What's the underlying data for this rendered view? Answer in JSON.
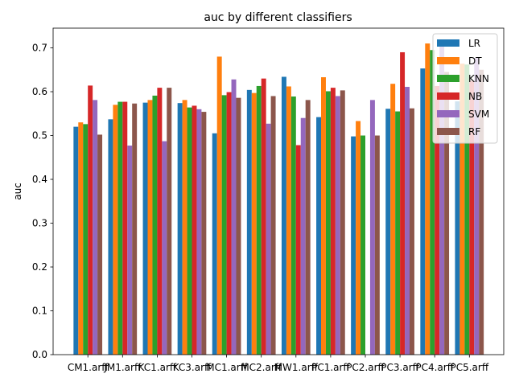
{
  "chart_data": {
    "type": "bar",
    "title": "auc by different classifiers",
    "xlabel": "",
    "ylabel": "auc",
    "ylim": [
      0,
      0.745
    ],
    "yticks": [
      "0.0",
      "0.1",
      "0.2",
      "0.3",
      "0.4",
      "0.5",
      "0.6",
      "0.7"
    ],
    "categories": [
      "CM1.arff",
      "JM1.arff",
      "KC1.arff",
      "KC3.arff",
      "MC1.arff",
      "MC2.arff",
      "MW1.arff",
      "PC1.arff",
      "PC2.arff",
      "PC3.arff",
      "PC4.arff",
      "PC5.arff"
    ],
    "legend_position": "top-right",
    "grid": false,
    "series": [
      {
        "name": "LR",
        "color": "#1f77b4",
        "values": [
          0.52,
          0.537,
          0.575,
          0.574,
          0.505,
          0.604,
          0.634,
          0.542,
          0.498,
          0.561,
          0.653,
          0.578
        ]
      },
      {
        "name": "DT",
        "color": "#ff7f0e",
        "values": [
          0.53,
          0.57,
          0.581,
          0.581,
          0.68,
          0.597,
          0.612,
          0.633,
          0.533,
          0.618,
          0.71,
          0.664
        ]
      },
      {
        "name": "KNN",
        "color": "#2ca02c",
        "values": [
          0.526,
          0.577,
          0.591,
          0.564,
          0.592,
          0.613,
          0.589,
          0.601,
          0.5,
          0.555,
          0.695,
          0.662
        ]
      },
      {
        "name": "NB",
        "color": "#d62728",
        "values": [
          0.614,
          0.577,
          0.609,
          0.568,
          0.599,
          0.63,
          0.478,
          0.609,
          0.0,
          0.69,
          0.613,
          0.625
        ]
      },
      {
        "name": "SVM",
        "color": "#9467bd",
        "values": [
          0.581,
          0.477,
          0.487,
          0.56,
          0.628,
          0.527,
          0.54,
          0.59,
          0.581,
          0.611,
          0.71,
          0.677
        ]
      },
      {
        "name": "RF",
        "color": "#8c564b",
        "values": [
          0.502,
          0.573,
          0.609,
          0.554,
          0.586,
          0.59,
          0.581,
          0.603,
          0.5,
          0.562,
          0.645,
          0.65
        ]
      }
    ]
  }
}
